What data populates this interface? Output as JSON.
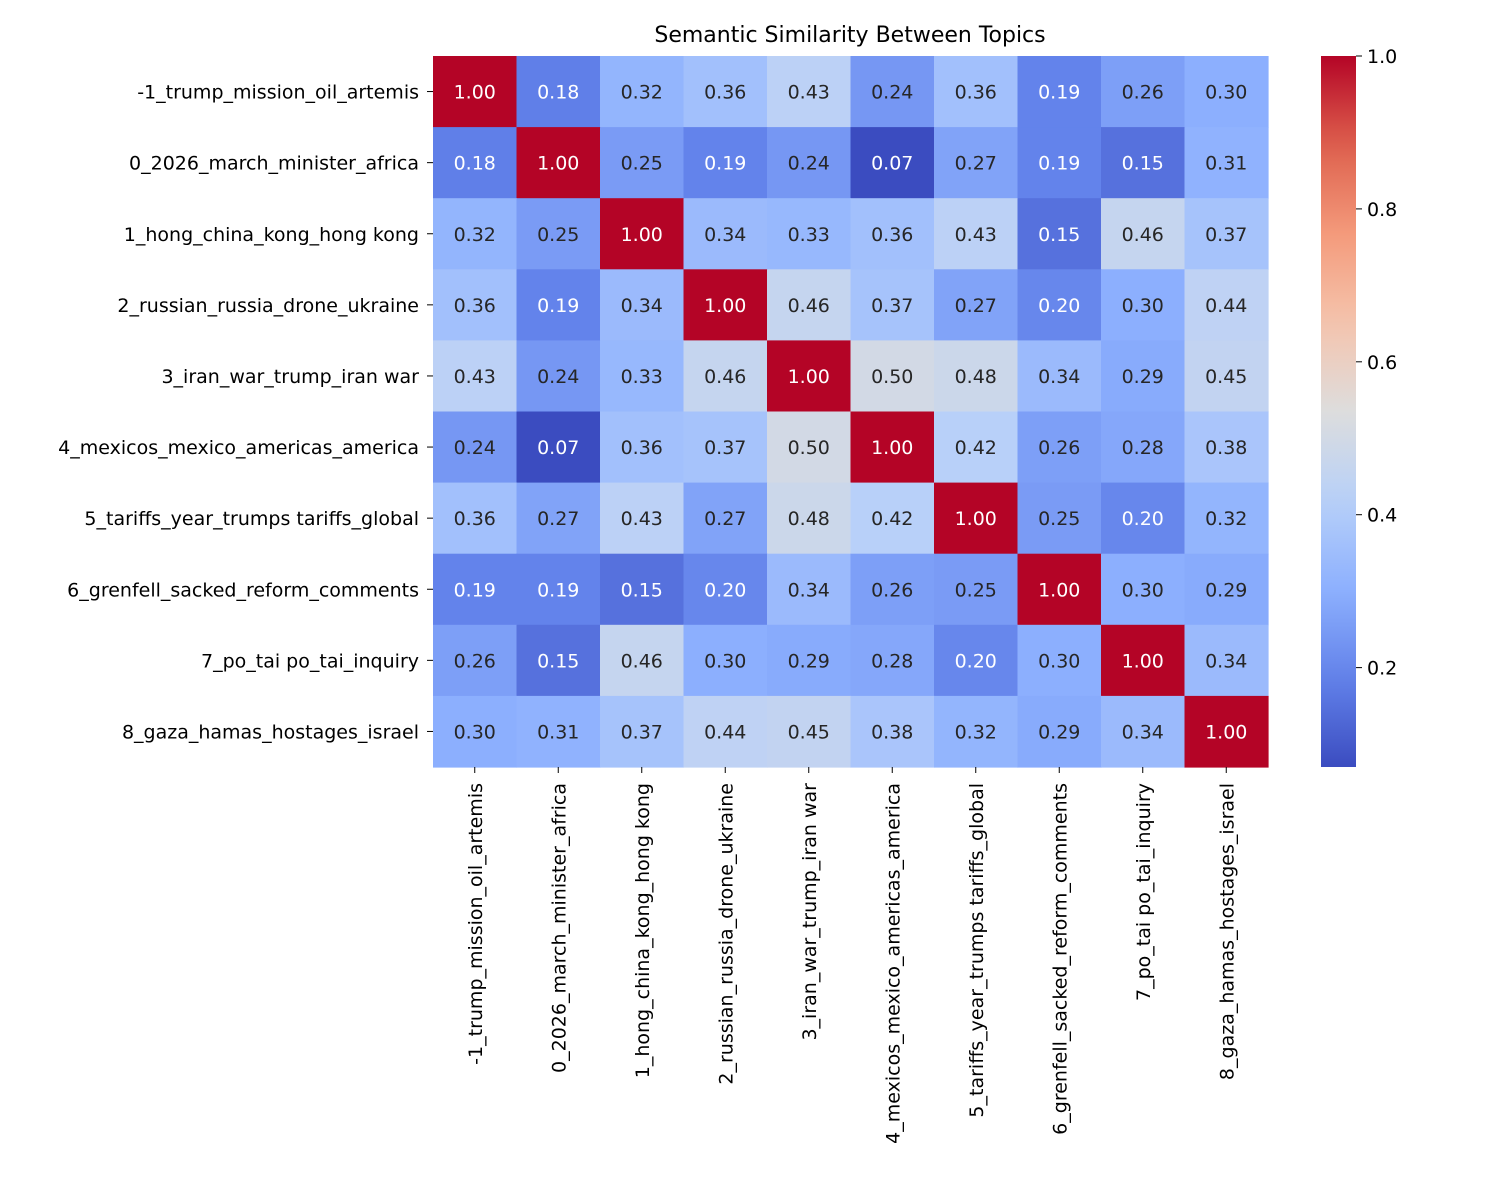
{
  "chart_data": {
    "type": "heatmap",
    "title": "Semantic Similarity Between Topics",
    "xlabel": "",
    "ylabel": "",
    "labels": [
      "-1_trump_mission_oil_artemis",
      "0_2026_march_minister_africa",
      "1_hong_china_kong_hong kong",
      "2_russian_russia_drone_ukraine",
      "3_iran_war_trump_iran war",
      "4_mexicos_mexico_americas_america",
      "5_tariffs_year_trumps tariffs_global",
      "6_grenfell_sacked_reform_comments",
      "7_po_tai po_tai_inquiry",
      "8_gaza_hamas_hostages_israel"
    ],
    "values": [
      [
        1.0,
        0.18,
        0.32,
        0.36,
        0.43,
        0.24,
        0.36,
        0.19,
        0.26,
        0.3
      ],
      [
        0.18,
        1.0,
        0.25,
        0.19,
        0.24,
        0.07,
        0.27,
        0.19,
        0.15,
        0.31
      ],
      [
        0.32,
        0.25,
        1.0,
        0.34,
        0.33,
        0.36,
        0.43,
        0.15,
        0.46,
        0.37
      ],
      [
        0.36,
        0.19,
        0.34,
        1.0,
        0.46,
        0.37,
        0.27,
        0.2,
        0.3,
        0.44
      ],
      [
        0.43,
        0.24,
        0.33,
        0.46,
        1.0,
        0.5,
        0.48,
        0.34,
        0.29,
        0.45
      ],
      [
        0.24,
        0.07,
        0.36,
        0.37,
        0.5,
        1.0,
        0.42,
        0.26,
        0.28,
        0.38
      ],
      [
        0.36,
        0.27,
        0.43,
        0.27,
        0.48,
        0.42,
        1.0,
        0.25,
        0.2,
        0.32
      ],
      [
        0.19,
        0.19,
        0.15,
        0.2,
        0.34,
        0.26,
        0.25,
        1.0,
        0.3,
        0.29
      ],
      [
        0.26,
        0.15,
        0.46,
        0.3,
        0.29,
        0.28,
        0.2,
        0.3,
        1.0,
        0.34
      ],
      [
        0.3,
        0.31,
        0.37,
        0.44,
        0.45,
        0.38,
        0.32,
        0.29,
        0.34,
        1.0
      ]
    ],
    "colormap": "coolwarm",
    "color_range": [
      0.07,
      1.0
    ],
    "colorbar_ticks": [
      "0.2",
      "0.4",
      "0.6",
      "0.8",
      "1.0"
    ],
    "annotation_format": "2 decimals",
    "grid": false,
    "legend": "colorbar-right"
  }
}
